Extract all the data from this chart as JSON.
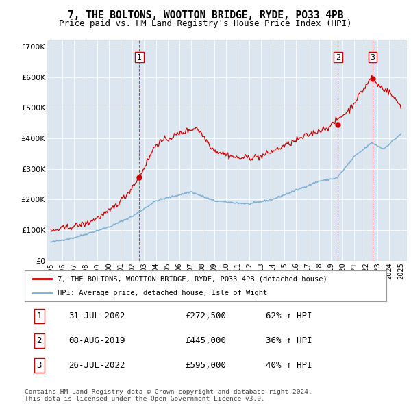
{
  "title": "7, THE BOLTONS, WOOTTON BRIDGE, RYDE, PO33 4PB",
  "subtitle": "Price paid vs. HM Land Registry's House Price Index (HPI)",
  "ylim": [
    0,
    720000
  ],
  "yticks": [
    0,
    100000,
    200000,
    300000,
    400000,
    500000,
    600000,
    700000
  ],
  "ytick_labels": [
    "£0",
    "£100K",
    "£200K",
    "£300K",
    "£400K",
    "£500K",
    "£600K",
    "£700K"
  ],
  "xlim_start": 1994.7,
  "xlim_end": 2025.5,
  "plot_bg": "#dce6f0",
  "red_color": "#cc0000",
  "blue_color": "#7bafd4",
  "sale_dates": [
    2002.58,
    2019.6,
    2022.57
  ],
  "sale_prices": [
    272500,
    445000,
    595000
  ],
  "sale_labels": [
    "1",
    "2",
    "3"
  ],
  "legend_line1": "7, THE BOLTONS, WOOTTON BRIDGE, RYDE, PO33 4PB (detached house)",
  "legend_line2": "HPI: Average price, detached house, Isle of Wight",
  "table_rows": [
    [
      "1",
      "31-JUL-2002",
      "£272,500",
      "62% ↑ HPI"
    ],
    [
      "2",
      "08-AUG-2019",
      "£445,000",
      "36% ↑ HPI"
    ],
    [
      "3",
      "26-JUL-2022",
      "£595,000",
      "40% ↑ HPI"
    ]
  ],
  "footer": "Contains HM Land Registry data © Crown copyright and database right 2024.\nThis data is licensed under the Open Government Licence v3.0.",
  "title_fontsize": 10.5,
  "subtitle_fontsize": 9,
  "tick_fontsize": 8
}
